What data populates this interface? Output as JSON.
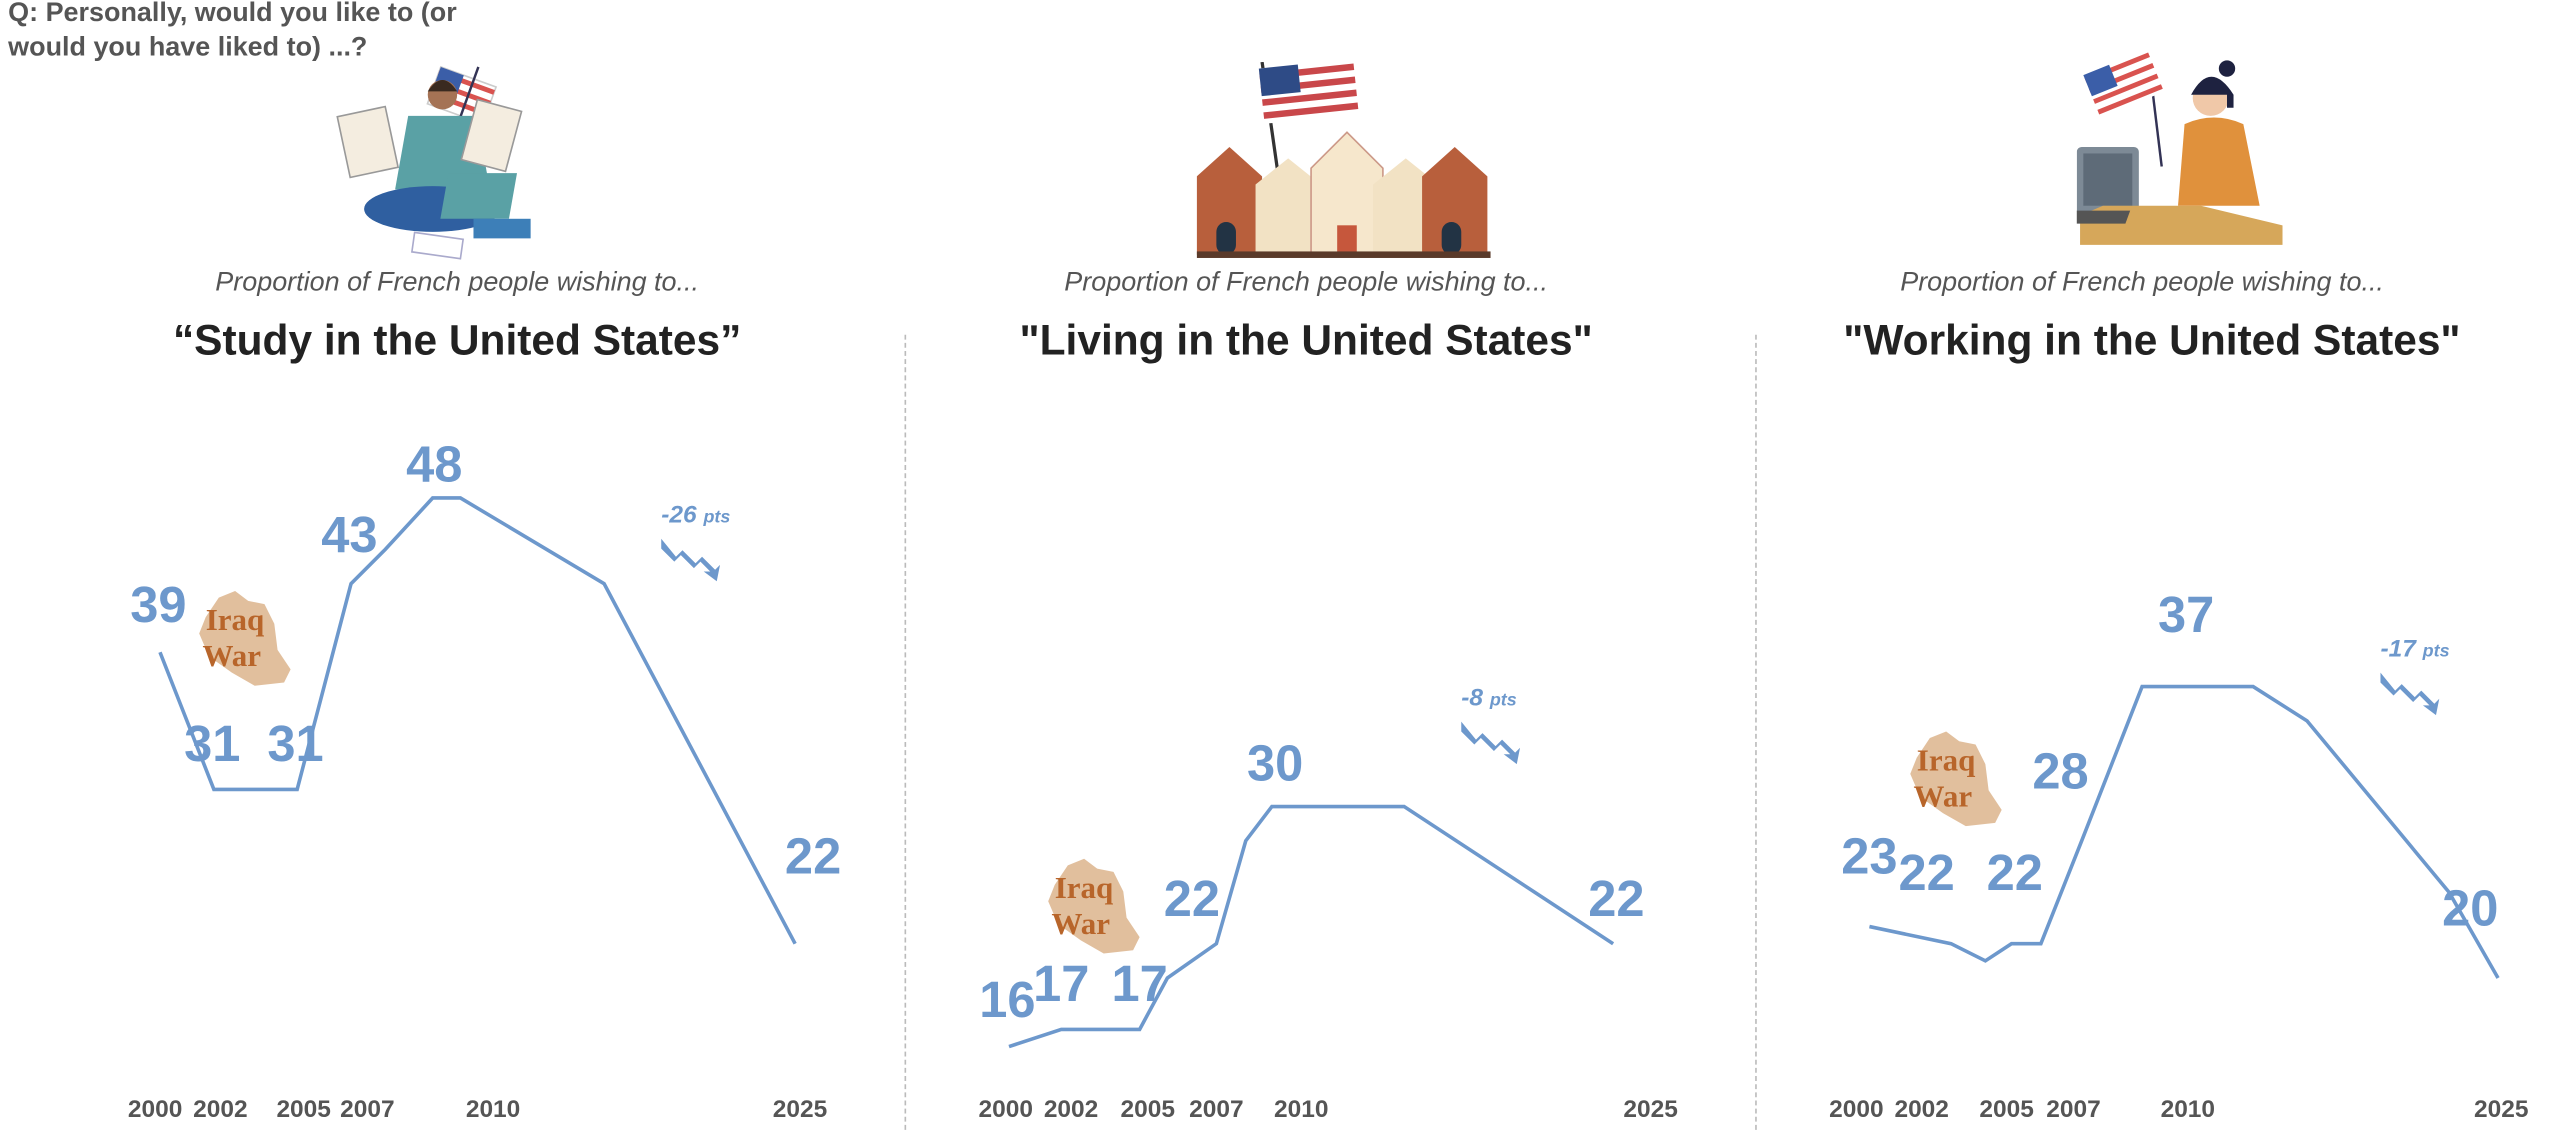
{
  "question": [
    "Q: Personally, would you like to (or",
    "would you have liked to) ...?"
  ],
  "annotation_label": "Iraq War",
  "colors": {
    "line": "#6d98cc",
    "ticks": "#555555",
    "iraq_text": "#b8652a",
    "iraq_map": "#dcb48c"
  },
  "chart_data": [
    {
      "type": "line",
      "subtitle": "Proportion of French people wishing to...",
      "title": "“Study in the United States”",
      "tick_labels": [
        "2000",
        "2002",
        "2005",
        "2007",
        "2010",
        "2025"
      ],
      "ylabel": "%",
      "points": [
        {
          "year": 2000,
          "value": 39,
          "label": "39"
        },
        {
          "year": 2002,
          "value": 31,
          "label": "31"
        },
        {
          "year": 2005,
          "value": 31,
          "label": "31"
        },
        {
          "year": 2006,
          "value": 43,
          "label": "43"
        },
        {
          "year": 2007,
          "value": 45
        },
        {
          "year": 2008,
          "value": 48,
          "label": "48"
        },
        {
          "year": 2009,
          "value": 48
        },
        {
          "year": 2015,
          "value": 43
        },
        {
          "year": 2025,
          "value": 22,
          "label": "22"
        }
      ],
      "change": {
        "value": "-26",
        "unit": "pts"
      },
      "annotation": "Iraq War"
    },
    {
      "type": "line",
      "subtitle": "Proportion of French people wishing to...",
      "title": "\"Living in the United States\"",
      "tick_labels": [
        "2000",
        "2002",
        "2005",
        "2007",
        "2010",
        "2025"
      ],
      "points": [
        {
          "year": 2000,
          "value": 16,
          "label": "16"
        },
        {
          "year": 2002,
          "value": 17,
          "label": "17"
        },
        {
          "year": 2005,
          "value": 17,
          "label": "17"
        },
        {
          "year": 2006,
          "value": 20
        },
        {
          "year": 2007,
          "value": 22,
          "label": "22"
        },
        {
          "year": 2008,
          "value": 28
        },
        {
          "year": 2009,
          "value": 30,
          "label": "30"
        },
        {
          "year": 2015,
          "value": 30
        },
        {
          "year": 2025,
          "value": 22,
          "label": "22"
        }
      ],
      "change": {
        "value": "-8",
        "unit": "pts"
      },
      "annotation": "Iraq War"
    },
    {
      "type": "line",
      "subtitle": "Proportion of French people wishing to...",
      "title": "\"Working in the United States\"",
      "tick_labels": [
        "2000",
        "2002",
        "2005",
        "2007",
        "2010",
        "2025"
      ],
      "points": [
        {
          "year": 2000,
          "value": 23,
          "label": "23"
        },
        {
          "year": 2002,
          "value": 22,
          "label": "22"
        },
        {
          "year": 2003,
          "value": 21
        },
        {
          "year": 2004,
          "value": 22
        },
        {
          "year": 2005,
          "value": 22,
          "label": "22"
        },
        {
          "year": 2007,
          "value": 28,
          "label": "28"
        },
        {
          "year": 2009,
          "value": 37,
          "label": "37"
        },
        {
          "year": 2013,
          "value": 37
        },
        {
          "year": 2015,
          "value": 35
        },
        {
          "year": 2022,
          "value": 25
        },
        {
          "year": 2025,
          "value": 20,
          "label": "20"
        }
      ],
      "change": {
        "value": "-17",
        "unit": "pts"
      },
      "annotation": "Iraq War"
    }
  ]
}
